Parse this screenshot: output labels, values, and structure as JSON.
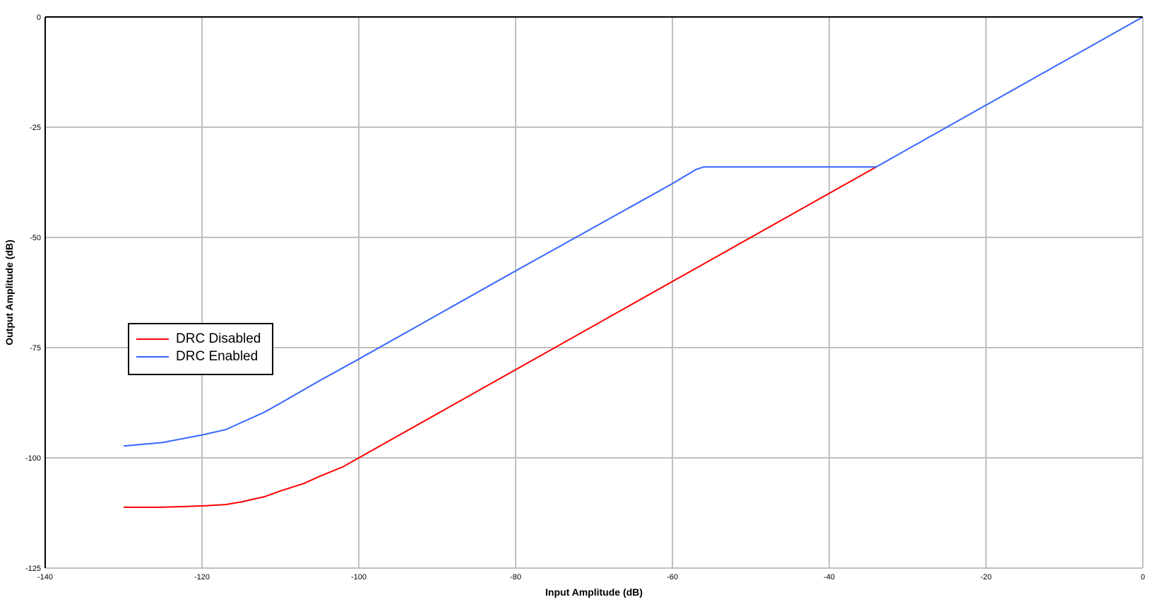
{
  "chart_data": {
    "type": "line",
    "title": "",
    "xlabel": "Input Amplitude (dB)",
    "ylabel": "Output Amplitude (dB)",
    "xlim": [
      -140,
      0
    ],
    "ylim": [
      -125,
      0
    ],
    "xticks": [
      -140,
      -120,
      -100,
      -80,
      -60,
      -40,
      -20,
      0
    ],
    "yticks": [
      0,
      -25,
      -50,
      -75,
      -100,
      -125
    ],
    "grid": true,
    "legend_position": "center-left",
    "series": [
      {
        "name": "DRC Disabled",
        "color": "#ff0000",
        "x": [
          -130,
          -125,
          -120,
          -117,
          -115,
          -112,
          -110,
          -107,
          -105,
          -102,
          -100,
          -80,
          -60,
          -40,
          -34
        ],
        "y": [
          -111.2,
          -111.2,
          -110.9,
          -110.6,
          -110.0,
          -108.8,
          -107.5,
          -105.8,
          -104.2,
          -102.0,
          -100.0,
          -80.0,
          -60.0,
          -40.0,
          -34.0
        ]
      },
      {
        "name": "DRC Enabled",
        "color": "#3366ff",
        "x": [
          -130,
          -125,
          -120,
          -117,
          -115,
          -112,
          -110,
          -105,
          -100,
          -80,
          -60,
          -57,
          -56,
          -34,
          -20,
          0
        ],
        "y": [
          -97.3,
          -96.5,
          -94.8,
          -93.6,
          -92.0,
          -89.6,
          -87.6,
          -82.5,
          -77.6,
          -57.6,
          -37.8,
          -34.6,
          -34.0,
          -34.0,
          -20.0,
          0.0
        ]
      }
    ]
  }
}
